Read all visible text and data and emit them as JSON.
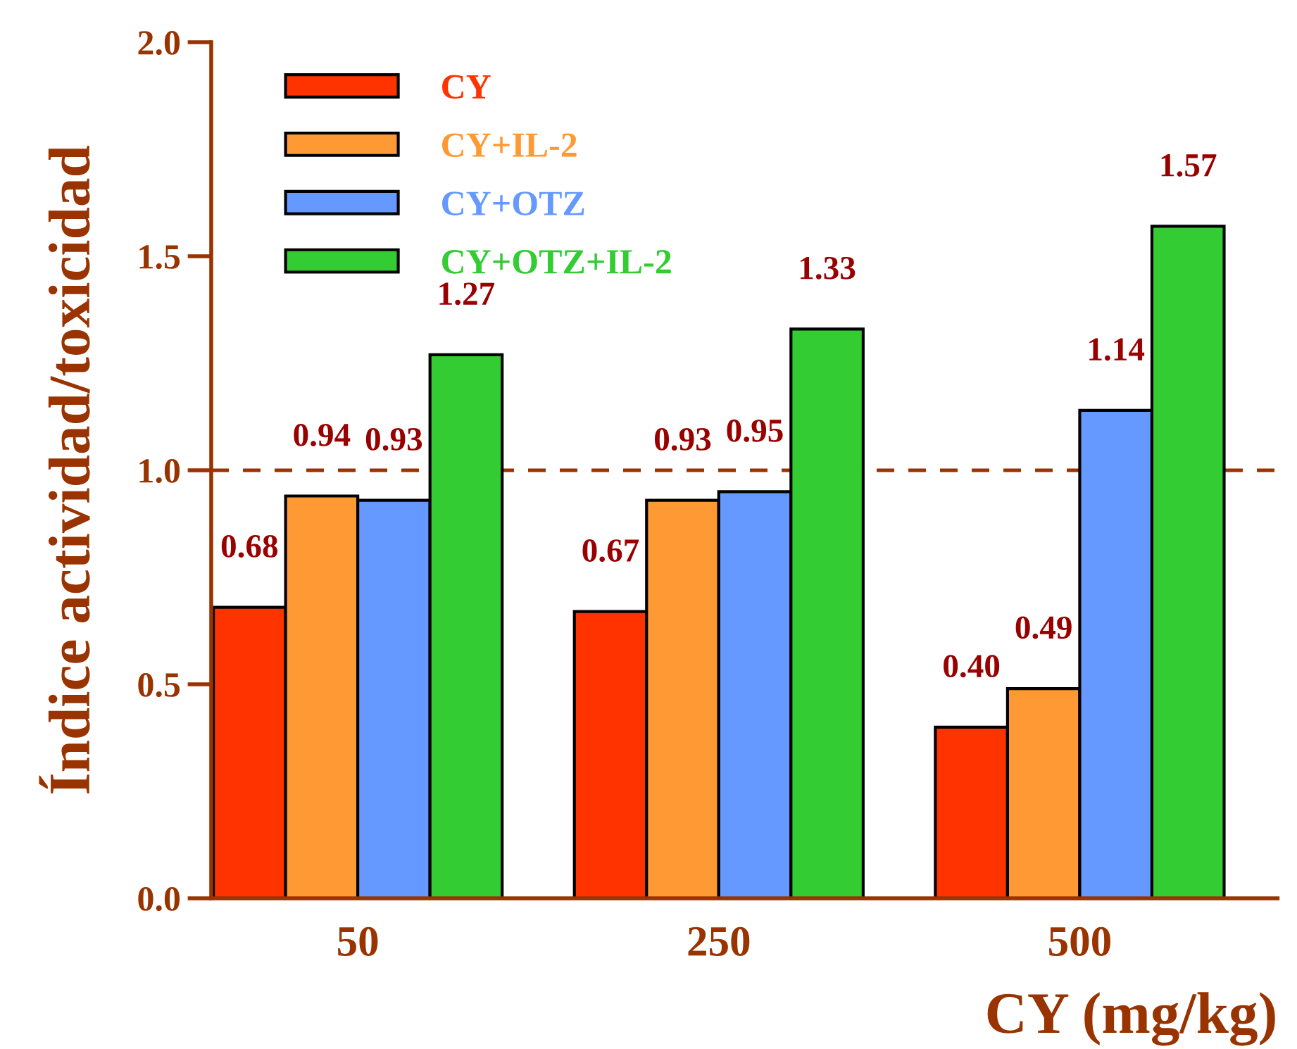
{
  "chart_data": {
    "type": "bar",
    "xlabel": "CY (mg/kg)",
    "ylabel": "Índice actividad/toxicidad",
    "categories": [
      "50",
      "250",
      "500"
    ],
    "series": [
      {
        "name": "CY",
        "color": "#ff3300",
        "values": [
          0.68,
          0.67,
          0.4
        ],
        "value_labels": [
          "0.68",
          "0.67",
          "0.40"
        ]
      },
      {
        "name": "CY+IL-2",
        "color": "#ff9933",
        "values": [
          0.94,
          0.93,
          0.49
        ],
        "value_labels": [
          "0.94",
          "0.93",
          "0.49"
        ]
      },
      {
        "name": "CY+OTZ",
        "color": "#6699ff",
        "values": [
          0.93,
          0.95,
          1.14
        ],
        "value_labels": [
          "0.93",
          "0.95",
          "1.14"
        ]
      },
      {
        "name": "CY+OTZ+IL-2",
        "color": "#33cc33",
        "values": [
          1.27,
          1.33,
          1.57
        ],
        "value_labels": [
          "1.27",
          "1.33",
          "1.57"
        ]
      }
    ],
    "ylim": [
      0,
      2.0
    ],
    "yticks": [
      {
        "value": 0,
        "label": "0.0"
      },
      {
        "value": 0.5,
        "label": "0.5"
      },
      {
        "value": 1.0,
        "label": "1.0"
      },
      {
        "value": 1.5,
        "label": "1.5"
      },
      {
        "value": 2.0,
        "label": "2.0"
      }
    ],
    "ref_lines": [
      {
        "axis": "y",
        "value": 1.0,
        "color": "#993300",
        "line_style": "dashed"
      }
    ],
    "legend": "top left",
    "grid": false
  }
}
